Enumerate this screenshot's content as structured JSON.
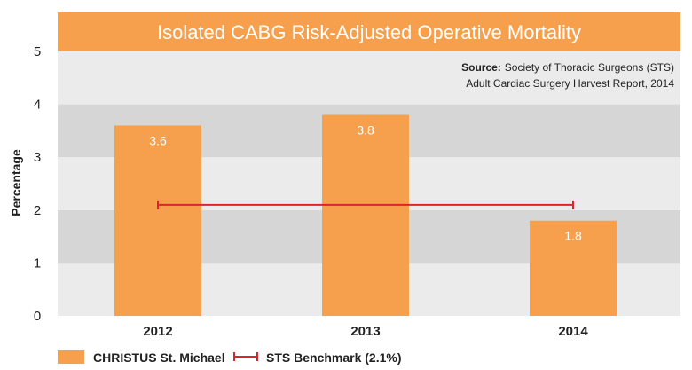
{
  "chart_data": {
    "type": "bar",
    "title": "Isolated CABG Risk-Adjusted Operative Mortality",
    "source_label": "Source:",
    "source_line1": "Society of Thoracic Surgeons (STS)",
    "source_line2": "Adult Cardiac Surgery Harvest Report, 2014",
    "xlabel": "",
    "ylabel": "Percentage",
    "ylim": [
      0,
      5
    ],
    "yticks": [
      "0",
      "1",
      "2",
      "3",
      "4",
      "5"
    ],
    "categories": [
      "2012",
      "2013",
      "2014"
    ],
    "series": [
      {
        "name": "CHRISTUS St. Michael",
        "values": [
          3.6,
          3.8,
          1.8
        ],
        "labels": [
          "3.6",
          "3.8",
          "1.8"
        ]
      }
    ],
    "benchmark": {
      "name": "STS Benchmark (2.1%)",
      "value": 2.1
    },
    "grid": "alternating-bands",
    "legend": "bottom-left",
    "colors": {
      "bar": "#F6A04D",
      "title_bg": "#F6A04D",
      "benchmark": "#D9262B",
      "band_light": "#EBEBEB",
      "band_dark": "#D6D6D6"
    }
  }
}
